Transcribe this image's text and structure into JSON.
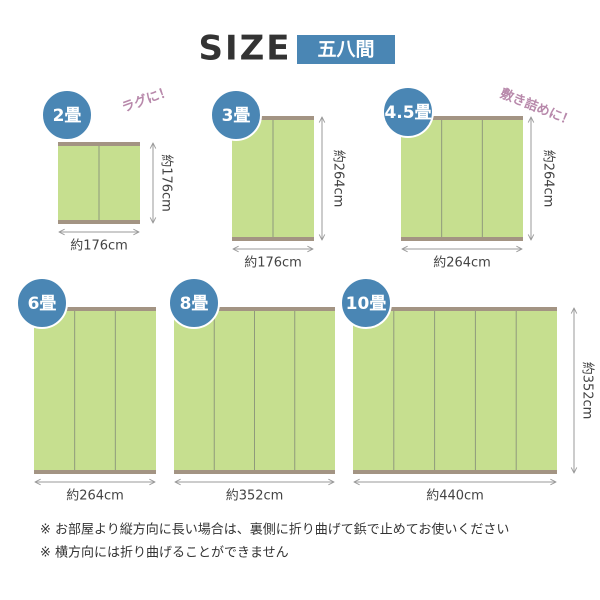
{
  "header": {
    "title": "SIZE",
    "badge": "五八間"
  },
  "mats": [
    {
      "label": "2畳",
      "width": "約176cm",
      "height": "約176cm",
      "note": "ラグに！"
    },
    {
      "label": "3畳",
      "width": "約176cm",
      "height": "約264cm"
    },
    {
      "label": "4.5畳",
      "width": "約264cm",
      "height": "約264cm",
      "note": "敷き詰めに！"
    },
    {
      "label": "6畳",
      "width": "約264cm"
    },
    {
      "label": "8畳",
      "width": "約352cm"
    },
    {
      "label": "10畳",
      "width": "約440cm",
      "height": "約352cm"
    }
  ],
  "notes": [
    "※ お部屋より縦方向に長い場合は、裏側に折り曲げて鋲で止めてお使いください",
    "※ 横方向には折り曲げることができません"
  ]
}
